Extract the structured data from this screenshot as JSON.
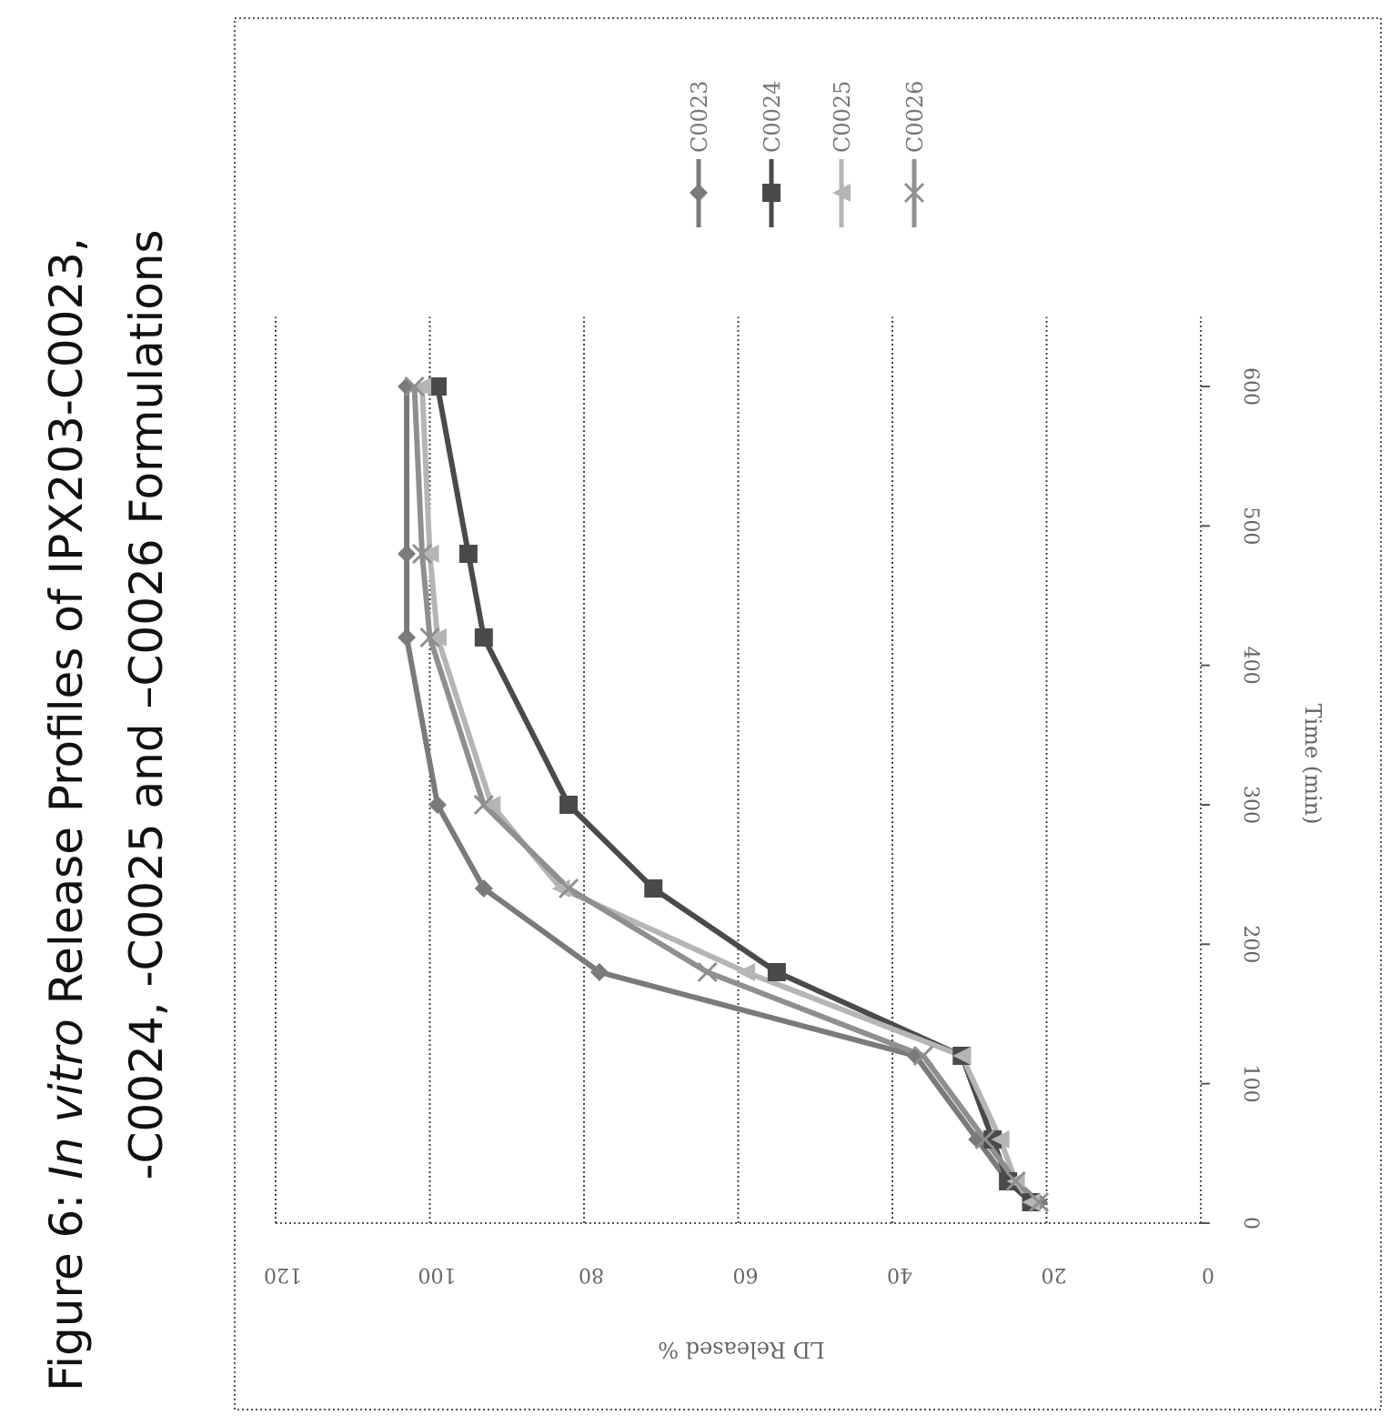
{
  "figure": {
    "caption_line1_prefix": "Figure 6:  ",
    "caption_line1_italic": "In vitro",
    "caption_line1_suffix": " Release Profiles of IPX203-C0023,",
    "caption_line2": "-C0024, -C0025 and –C0026 Formulations"
  },
  "chart_data": {
    "type": "line",
    "title": "",
    "xlabel": "Time (min)",
    "ylabel": "LD Released %",
    "xlim": [
      0,
      650
    ],
    "ylim": [
      0,
      120
    ],
    "xticks": [
      0,
      100,
      200,
      300,
      400,
      500,
      600
    ],
    "yticks": [
      0,
      20,
      40,
      60,
      80,
      100,
      120
    ],
    "grid": "horizontal",
    "legend_position": "right",
    "series": [
      {
        "name": "C0023",
        "color": "#7a7a7a",
        "marker": "diamond",
        "x": [
          15,
          30,
          60,
          120,
          180,
          240,
          300,
          420,
          480,
          600
        ],
        "y": [
          21,
          25,
          29,
          37,
          78,
          93,
          99,
          103,
          103,
          103
        ]
      },
      {
        "name": "C0024",
        "color": "#4a4a4a",
        "marker": "square",
        "x": [
          15,
          30,
          60,
          120,
          180,
          240,
          300,
          420,
          480,
          600
        ],
        "y": [
          22,
          25,
          27,
          31,
          55,
          71,
          82,
          93,
          95,
          99
        ]
      },
      {
        "name": "C0025",
        "color": "#b5b5b5",
        "marker": "triangle",
        "x": [
          15,
          30,
          60,
          120,
          180,
          240,
          300,
          420,
          480,
          600
        ],
        "y": [
          22,
          24,
          26,
          31,
          59,
          83,
          92,
          99,
          100,
          101
        ]
      },
      {
        "name": "C0026",
        "color": "#8f8f8f",
        "marker": "cross",
        "x": [
          15,
          30,
          60,
          120,
          180,
          240,
          300,
          420,
          480,
          600
        ],
        "y": [
          21,
          24,
          28,
          36,
          64,
          82,
          93,
          100,
          101,
          102
        ]
      }
    ]
  }
}
